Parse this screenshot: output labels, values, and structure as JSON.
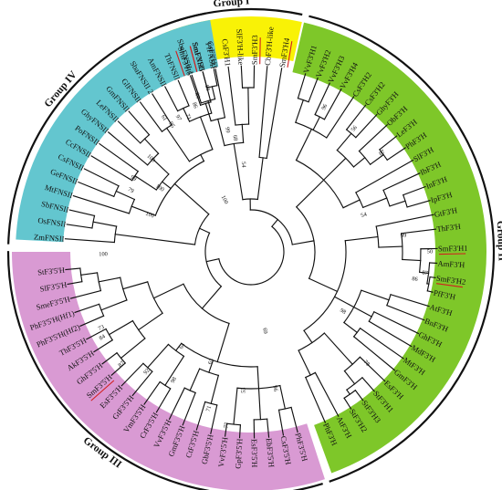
{
  "colors": {
    "group_I": "#f9f206",
    "group_II": "#7ec729",
    "group_III": "#d99ad3",
    "group_IV": "#63c6cf",
    "branch": "#111111",
    "highlight_underline": "#d21f1f"
  },
  "groups": [
    {
      "id": "I",
      "label": "Group I",
      "start": -22,
      "end": 13
    },
    {
      "id": "II",
      "label": "Group II",
      "start": 13,
      "end": 162
    },
    {
      "id": "III",
      "label": "Group III",
      "start": 162,
      "end": 271
    },
    {
      "id": "IV",
      "label": "Group IV",
      "start": 271,
      "end": 350
    }
  ],
  "leaves": [
    {
      "name": "SmF3'H6",
      "angle": -19,
      "highlight": true
    },
    {
      "name": "SmF3'H5",
      "angle": -15,
      "highlight": true
    },
    {
      "name": "CsF3'H3",
      "angle": -11,
      "highlight": false
    },
    {
      "name": "CsF3'H1",
      "angle": -7,
      "highlight": false
    },
    {
      "name": "SlF3'H-like",
      "angle": -3,
      "highlight": false
    },
    {
      "name": "SmF3'H3",
      "angle": 1,
      "highlight": true
    },
    {
      "name": "CbF3'H-like",
      "angle": 5,
      "highlight": false
    },
    {
      "name": "SmF3'H4",
      "angle": 9.5,
      "highlight": true
    },
    {
      "name": "VvF3'H1",
      "angle": 17,
      "highlight": false
    },
    {
      "name": "VvF3'H2",
      "angle": 21,
      "highlight": false
    },
    {
      "name": "VvF3'H3",
      "angle": 25,
      "highlight": false
    },
    {
      "name": "VvF3'H4",
      "angle": 29,
      "highlight": false
    },
    {
      "name": "CsF3'H2",
      "angle": 33.5,
      "highlight": false
    },
    {
      "name": "CsF3'H2",
      "angle": 38,
      "highlight": false
    },
    {
      "name": "GhyF3'H",
      "angle": 42.5,
      "highlight": false
    },
    {
      "name": "ObF3'H",
      "angle": 47,
      "highlight": false
    },
    {
      "name": "LeF3'H",
      "angle": 51.5,
      "highlight": false
    },
    {
      "name": "PhF3'H",
      "angle": 56,
      "highlight": false
    },
    {
      "name": "SlF3'H",
      "angle": 60.5,
      "highlight": false
    },
    {
      "name": "IbF3'H",
      "angle": 65,
      "highlight": false
    },
    {
      "name": "InF3'H",
      "angle": 69.5,
      "highlight": false
    },
    {
      "name": "IpF3'H",
      "angle": 74,
      "highlight": false
    },
    {
      "name": "GtF3'H",
      "angle": 78.5,
      "highlight": false
    },
    {
      "name": "ThF3'H",
      "angle": 83,
      "highlight": false
    },
    {
      "name": "SmF3'H1",
      "angle": 89,
      "highlight": true
    },
    {
      "name": "AmF3'H",
      "angle": 93.5,
      "highlight": false
    },
    {
      "name": "SmF3'H2",
      "angle": 98,
      "highlight": true
    },
    {
      "name": "PfF3'H",
      "angle": 102.5,
      "highlight": false
    },
    {
      "name": "AtF3'H",
      "angle": 107,
      "highlight": false
    },
    {
      "name": "BnF3'H",
      "angle": 111.5,
      "highlight": false
    },
    {
      "name": "GhF3'H",
      "angle": 116,
      "highlight": false
    },
    {
      "name": "MdF3'H",
      "angle": 120.5,
      "highlight": false
    },
    {
      "name": "MtF3'H",
      "angle": 125,
      "highlight": false
    },
    {
      "name": "GmF3'H",
      "angle": 129.5,
      "highlight": false
    },
    {
      "name": "EsF3'H",
      "angle": 134,
      "highlight": false
    },
    {
      "name": "StF3'H1",
      "angle": 138.5,
      "highlight": false
    },
    {
      "name": "StF3'H3",
      "angle": 143,
      "highlight": false
    },
    {
      "name": "StF3'H2",
      "angle": 147.5,
      "highlight": false
    },
    {
      "name": "AtF3'H",
      "angle": 152,
      "highlight": false
    },
    {
      "name": "PhF3'H",
      "angle": 156.5,
      "highlight": false
    },
    {
      "name": "PhF3'5'H",
      "angle": 165.5,
      "highlight": false
    },
    {
      "name": "CsF3'5'H",
      "angle": 170,
      "highlight": false
    },
    {
      "name": "EbF3'5'H",
      "angle": 174.5,
      "highlight": false
    },
    {
      "name": "EsF3'5'H",
      "angle": 179,
      "highlight": false
    },
    {
      "name": "GpF3'5'H",
      "angle": 183.5,
      "highlight": false
    },
    {
      "name": "VvF3'5'H",
      "angle": 188,
      "highlight": false
    },
    {
      "name": "GbF3'5'H",
      "angle": 192.5,
      "highlight": false
    },
    {
      "name": "CtF3'5'H",
      "angle": 197,
      "highlight": false
    },
    {
      "name": "GmF3'5'H",
      "angle": 201.5,
      "highlight": false
    },
    {
      "name": "VvF3'5'H",
      "angle": 206,
      "highlight": false
    },
    {
      "name": "CrF3'5'H",
      "angle": 210.5,
      "highlight": false
    },
    {
      "name": "VmF3'5'H",
      "angle": 215,
      "highlight": false
    },
    {
      "name": "GtF3'5'H",
      "angle": 219.5,
      "highlight": false
    },
    {
      "name": "EsF3'5'H",
      "angle": 224,
      "highlight": false
    },
    {
      "name": "SmF3'5'H",
      "angle": 228.5,
      "highlight": true
    },
    {
      "name": "GhF3'5'H",
      "angle": 233,
      "highlight": false
    },
    {
      "name": "AkF3'5'H",
      "angle": 237.5,
      "highlight": false
    },
    {
      "name": "ThF3'5'H",
      "angle": 242,
      "highlight": false
    },
    {
      "name": "PhF3'5'H(Hf2)",
      "angle": 246.5,
      "highlight": false
    },
    {
      "name": "PhF3'5'H(Hf1)",
      "angle": 251,
      "highlight": false
    },
    {
      "name": "SmeF3'5'H",
      "angle": 255.5,
      "highlight": false
    },
    {
      "name": "SlF3'5'H",
      "angle": 260,
      "highlight": false
    },
    {
      "name": "StF3'5'H",
      "angle": 264.5,
      "highlight": false
    },
    {
      "name": "ZmFNSII",
      "angle": 274,
      "highlight": false
    },
    {
      "name": "OsFNSII",
      "angle": 278.5,
      "highlight": false
    },
    {
      "name": "SbFNSII",
      "angle": 283,
      "highlight": false
    },
    {
      "name": "MtFNSII",
      "angle": 287.5,
      "highlight": false
    },
    {
      "name": "GeFNSII",
      "angle": 292,
      "highlight": false
    },
    {
      "name": "CsFNSII",
      "angle": 296.5,
      "highlight": false
    },
    {
      "name": "CcFNSII",
      "angle": 301,
      "highlight": false
    },
    {
      "name": "PoFNSII",
      "angle": 305.5,
      "highlight": false
    },
    {
      "name": "GhyFNSII",
      "angle": 310,
      "highlight": false
    },
    {
      "name": "LeFNSII",
      "angle": 314.5,
      "highlight": false
    },
    {
      "name": "GmFNSII",
      "angle": 319,
      "highlight": false
    },
    {
      "name": "GlFNSII",
      "angle": 323.5,
      "highlight": false
    },
    {
      "name": "SbaFNSII 2",
      "angle": 328,
      "highlight": false
    },
    {
      "name": "AmFNSII",
      "angle": 332.5,
      "highlight": false
    },
    {
      "name": "ThFNSII",
      "angle": 337,
      "highlight": false
    },
    {
      "name": "SbaFNSII 1",
      "angle": 341.5,
      "highlight": false
    },
    {
      "name": "SmFNSII",
      "angle": 345,
      "highlight": true
    },
    {
      "name": "PfFNSII",
      "angle": 348.5,
      "highlight": false
    }
  ],
  "bootstrap": [
    {
      "value": "99",
      "angle": -11,
      "radius": 136
    },
    {
      "value": "68",
      "angle": -8,
      "radius": 126
    },
    {
      "value": "54",
      "angle": -5,
      "radius": 96
    },
    {
      "value": "96",
      "angle": 27,
      "radius": 178
    },
    {
      "value": "56",
      "angle": 40,
      "radius": 176
    },
    {
      "value": "87",
      "angle": 53,
      "radius": 180
    },
    {
      "value": "54",
      "angle": 72,
      "radius": 130
    },
    {
      "value": "99",
      "angle": 84,
      "radius": 168
    },
    {
      "value": "50",
      "angle": 90,
      "radius": 196
    },
    {
      "value": "87",
      "angle": 97,
      "radius": 192
    },
    {
      "value": "86",
      "angle": 99.5,
      "radius": 182
    },
    {
      "value": "98",
      "angle": 123,
      "radius": 120
    },
    {
      "value": "78",
      "angle": 134,
      "radius": 176
    },
    {
      "value": "96",
      "angle": 170,
      "radius": 152
    },
    {
      "value": "69",
      "angle": 170,
      "radius": 88
    },
    {
      "value": "53",
      "angle": 183,
      "radius": 152
    },
    {
      "value": "77",
      "angle": 188,
      "radius": 192
    },
    {
      "value": "71",
      "angle": 195,
      "radius": 178
    },
    {
      "value": "63",
      "angle": 200,
      "radius": 128
    },
    {
      "value": "98",
      "angle": 211,
      "radius": 164
    },
    {
      "value": "64",
      "angle": 216,
      "radius": 128
    },
    {
      "value": "92",
      "angle": 221,
      "radius": 174
    },
    {
      "value": "87",
      "angle": 229,
      "radius": 188
    },
    {
      "value": "84",
      "angle": 240,
      "radius": 188
    },
    {
      "value": "73",
      "angle": 243,
      "radius": 184
    },
    {
      "value": "100",
      "angle": 269,
      "radius": 162
    },
    {
      "value": "100",
      "angle": 290,
      "radius": 118
    },
    {
      "value": "79",
      "angle": 297,
      "radius": 148
    },
    {
      "value": "99",
      "angle": 302,
      "radius": 152
    },
    {
      "value": "100",
      "angle": 305,
      "radius": 122
    },
    {
      "value": "100",
      "angle": 313,
      "radius": 150
    },
    {
      "value": "61",
      "angle": 327,
      "radius": 175
    },
    {
      "value": "95",
      "angle": 328,
      "radius": 164
    },
    {
      "value": "97",
      "angle": 331.5,
      "radius": 167
    },
    {
      "value": "71",
      "angle": 335,
      "radius": 163
    },
    {
      "value": "86",
      "angle": 339,
      "radius": 172
    },
    {
      "value": "89",
      "angle": 341,
      "radius": 181
    },
    {
      "value": "84",
      "angle": 345,
      "radius": 186
    },
    {
      "value": "100",
      "angle": 333,
      "radius": 64
    }
  ]
}
